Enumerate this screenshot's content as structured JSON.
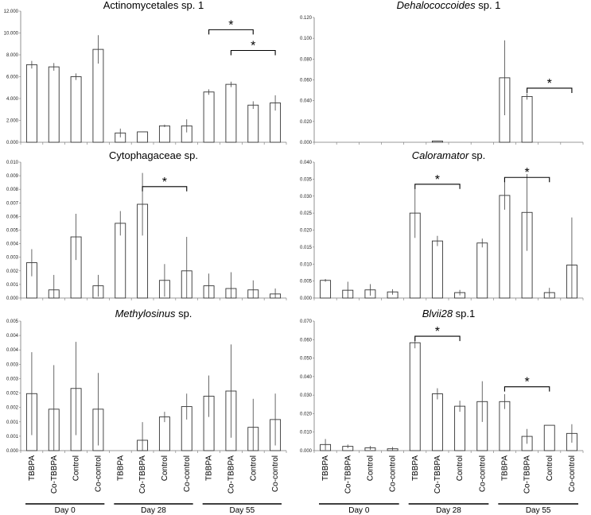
{
  "figure": {
    "day_groups": [
      "Day 0",
      "Day 28",
      "Day 55"
    ],
    "treatments": [
      "TBBPA",
      "Co-TBBPA",
      "Control",
      "Co-control"
    ]
  },
  "chart_data": [
    {
      "type": "bar",
      "title": "Actinomycetales sp. 1",
      "title_italic": "",
      "title_rest": "",
      "categories": [
        "TBBPA",
        "Co-TBBPA",
        "Control",
        "Co-control",
        "TBBPA",
        "Co-TBBPA",
        "Control",
        "Co-control",
        "TBBPA",
        "Co-TBBPA",
        "Control",
        "Co-control"
      ],
      "values": [
        7.1,
        6.9,
        6.0,
        8.5,
        0.85,
        0.95,
        1.5,
        1.5,
        4.6,
        5.3,
        3.4,
        3.6
      ],
      "errors": [
        0.35,
        0.35,
        0.3,
        1.3,
        0.4,
        0.0,
        0.12,
        0.6,
        0.25,
        0.25,
        0.35,
        0.7
      ],
      "ylim": [
        0,
        12
      ],
      "yticks": [
        "0.000",
        "2.000",
        "4.000",
        "6.000",
        "8.000",
        "10.000",
        "12.000"
      ],
      "significance": [
        {
          "from": 8,
          "to": 10,
          "level": 10.3,
          "label": "*"
        },
        {
          "from": 9,
          "to": 11,
          "level": 8.4,
          "label": "*"
        }
      ]
    },
    {
      "type": "bar",
      "title": "",
      "title_italic": "Dehalococcoides",
      "title_rest": " sp. 1",
      "categories": [
        "TBBPA",
        "Co-TBBPA",
        "Control",
        "Co-control",
        "TBBPA",
        "Co-TBBPA",
        "Control",
        "Co-control",
        "TBBPA",
        "Co-TBBPA",
        "Control",
        "Co-control"
      ],
      "values": [
        0,
        0,
        0,
        0,
        0,
        0.0012,
        0,
        0,
        0.062,
        0.044,
        0,
        0
      ],
      "errors": [
        0,
        0,
        0,
        0,
        0,
        0.0003,
        0,
        0,
        0.036,
        0.003,
        0,
        0
      ],
      "ylim": [
        0,
        0.12
      ],
      "yticks": [
        "0.000",
        "0.020",
        "0.040",
        "0.060",
        "0.080",
        "0.100",
        "0.120"
      ],
      "significance": [
        {
          "from": 9,
          "to": 11,
          "level": 0.052,
          "label": "*"
        }
      ]
    },
    {
      "type": "bar",
      "title": "Cytophagaceae sp.",
      "title_italic": "",
      "title_rest": "",
      "categories": [
        "TBBPA",
        "Co-TBBPA",
        "Control",
        "Co-control",
        "TBBPA",
        "Co-TBBPA",
        "Control",
        "Co-control",
        "TBBPA",
        "Co-TBBPA",
        "Control",
        "Co-control"
      ],
      "values": [
        0.0026,
        0.0006,
        0.0045,
        0.0009,
        0.0055,
        0.0069,
        0.0013,
        0.002,
        0.0009,
        0.0007,
        0.0006,
        0.0003
      ],
      "errors": [
        0.001,
        0.0011,
        0.0017,
        0.0008,
        0.0009,
        0.0023,
        0.0012,
        0.0025,
        0.0009,
        0.0012,
        0.0007,
        0.0004
      ],
      "ylim": [
        0,
        0.01
      ],
      "yticks": [
        "0.000",
        "0.001",
        "0.002",
        "0.003",
        "0.004",
        "0.005",
        "0.006",
        "0.007",
        "0.008",
        "0.009",
        "0.010"
      ],
      "significance": [
        {
          "from": 5,
          "to": 7,
          "level": 0.0082,
          "label": "*"
        }
      ]
    },
    {
      "type": "bar",
      "title": "",
      "title_italic": "Caloramator",
      "title_rest": " sp.",
      "categories": [
        "TBBPA",
        "Co-TBBPA",
        "Control",
        "Co-control",
        "TBBPA",
        "Co-TBBPA",
        "Control",
        "Co-control",
        "TBBPA",
        "Co-TBBPA",
        "Control",
        "Co-control"
      ],
      "values": [
        0.0052,
        0.0023,
        0.0024,
        0.0018,
        0.025,
        0.0168,
        0.0016,
        0.0162,
        0.0302,
        0.0252,
        0.0016,
        0.0097
      ],
      "errors": [
        0.0004,
        0.0025,
        0.0017,
        0.0008,
        0.0073,
        0.0015,
        0.0008,
        0.0013,
        0.0042,
        0.0113,
        0.0014,
        0.014
      ],
      "ylim": [
        0,
        0.04
      ],
      "yticks": [
        "0.000",
        "0.005",
        "0.010",
        "0.015",
        "0.020",
        "0.025",
        "0.030",
        "0.035",
        "0.040"
      ],
      "significance": [
        {
          "from": 4,
          "to": 6,
          "level": 0.0335,
          "label": "*"
        },
        {
          "from": 8,
          "to": 10,
          "level": 0.0355,
          "label": "*"
        }
      ]
    },
    {
      "type": "bar",
      "title": "",
      "title_italic": "Methylosinus",
      "title_rest": " sp.",
      "categories": [
        "TBBPA",
        "Co-TBBPA",
        "Control",
        "Co-control",
        "TBBPA",
        "Co-TBBPA",
        "Control",
        "Co-control",
        "TBBPA",
        "Co-TBBPA",
        "Control",
        "Co-control"
      ],
      "values": [
        0.0022,
        0.0016,
        0.0024,
        0.0016,
        0,
        0.0004,
        0.0013,
        0.0017,
        0.0021,
        0.0023,
        0.0009,
        0.0012
      ],
      "errors": [
        0.0016,
        0.0017,
        0.0018,
        0.0014,
        0,
        0.0007,
        0.0002,
        0.0005,
        0.0008,
        0.0018,
        0.0011,
        0.001
      ],
      "ylim": [
        0,
        0.005
      ],
      "yticks": [
        "0.000",
        "0.001",
        "0.001",
        "0.002",
        "0.002",
        "0.003",
        "0.003",
        "0.004",
        "0.004",
        "0.005"
      ],
      "significance": []
    },
    {
      "type": "bar",
      "title": "",
      "title_italic": "Blvii28",
      "title_rest": " sp.1",
      "categories": [
        "TBBPA",
        "Co-TBBPA",
        "Control",
        "Co-control",
        "TBBPA",
        "Co-TBBPA",
        "Control",
        "Co-control",
        "TBBPA",
        "Co-TBBPA",
        "Control",
        "Co-control"
      ],
      "values": [
        0.0033,
        0.0023,
        0.0015,
        0.001,
        0.0583,
        0.0307,
        0.024,
        0.0265,
        0.0265,
        0.0077,
        0.0137,
        0.0093
      ],
      "errors": [
        0.003,
        0.001,
        0.001,
        0.001,
        0.003,
        0.003,
        0.003,
        0.011,
        0.004,
        0.004,
        0.0,
        0.005
      ],
      "ylim": [
        0,
        0.07
      ],
      "yticks": [
        "0.000",
        "0.010",
        "0.020",
        "0.030",
        "0.040",
        "0.050",
        "0.060",
        "0.070"
      ],
      "significance": [
        {
          "from": 4,
          "to": 6,
          "level": 0.0618,
          "label": "*"
        },
        {
          "from": 8,
          "to": 10,
          "level": 0.0345,
          "label": "*"
        }
      ]
    }
  ]
}
